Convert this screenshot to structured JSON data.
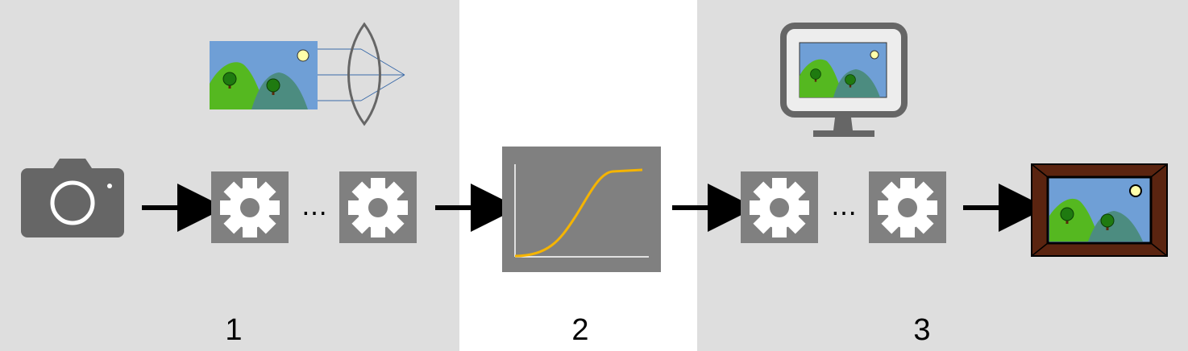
{
  "stages": [
    {
      "label": "1"
    },
    {
      "label": "2"
    },
    {
      "label": "3"
    }
  ],
  "ellipsis": "…",
  "colors": {
    "zone_gray": "#dedede",
    "zone_white": "#ffffff",
    "icon_gray": "#666666",
    "box_gray": "#808080",
    "curve": "#f5b400",
    "sky": "#6f9fd6",
    "hill_green": "#55b820",
    "hill_teal": "#4c8c80",
    "sun": "#ffffaa",
    "frame": "#5a2410",
    "arrow": "#000000"
  },
  "icons": [
    "camera-icon",
    "gear-icon",
    "lens-icon",
    "landscape-icon",
    "tone-curve-icon",
    "monitor-icon",
    "framed-picture-icon",
    "arrow-right-icon"
  ]
}
